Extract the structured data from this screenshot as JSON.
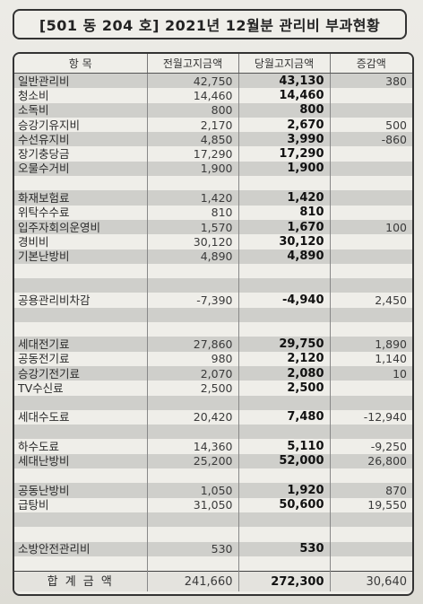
{
  "title": "[501 동 204 호] 2021년 12월분 관리비 부과현황",
  "headers": [
    "항  목",
    "전월고지금액",
    "당월고지금액",
    "증감액"
  ],
  "rows": [
    {
      "item": "일반관리비",
      "prev": "42,750",
      "cur": "43,130",
      "diff": "380"
    },
    {
      "item": "청소비",
      "prev": "14,460",
      "cur": "14,460",
      "diff": ""
    },
    {
      "item": "소독비",
      "prev": "800",
      "cur": "800",
      "diff": ""
    },
    {
      "item": "승강기유지비",
      "prev": "2,170",
      "cur": "2,670",
      "diff": "500"
    },
    {
      "item": "수선유지비",
      "prev": "4,850",
      "cur": "3,990",
      "diff": "-860"
    },
    {
      "item": "장기충당금",
      "prev": "17,290",
      "cur": "17,290",
      "diff": ""
    },
    {
      "item": "오물수거비",
      "prev": "1,900",
      "cur": "1,900",
      "diff": ""
    },
    {
      "item": "",
      "prev": "",
      "cur": "",
      "diff": ""
    },
    {
      "item": "화재보험료",
      "prev": "1,420",
      "cur": "1,420",
      "diff": ""
    },
    {
      "item": "위탁수수료",
      "prev": "810",
      "cur": "810",
      "diff": ""
    },
    {
      "item": "입주자회의운영비",
      "prev": "1,570",
      "cur": "1,670",
      "diff": "100"
    },
    {
      "item": "경비비",
      "prev": "30,120",
      "cur": "30,120",
      "diff": ""
    },
    {
      "item": "기본난방비",
      "prev": "4,890",
      "cur": "4,890",
      "diff": ""
    },
    {
      "item": "",
      "prev": "",
      "cur": "",
      "diff": ""
    },
    {
      "item": "",
      "prev": "",
      "cur": "",
      "diff": ""
    },
    {
      "item": "공용관리비차감",
      "prev": "-7,390",
      "cur": "-4,940",
      "diff": "2,450"
    },
    {
      "item": "",
      "prev": "",
      "cur": "",
      "diff": ""
    },
    {
      "item": "",
      "prev": "",
      "cur": "",
      "diff": ""
    },
    {
      "item": "세대전기료",
      "prev": "27,860",
      "cur": "29,750",
      "diff": "1,890"
    },
    {
      "item": "공동전기료",
      "prev": "980",
      "cur": "2,120",
      "diff": "1,140"
    },
    {
      "item": "승강기전기료",
      "prev": "2,070",
      "cur": "2,080",
      "diff": "10"
    },
    {
      "item": "TV수신료",
      "prev": "2,500",
      "cur": "2,500",
      "diff": ""
    },
    {
      "item": "",
      "prev": "",
      "cur": "",
      "diff": ""
    },
    {
      "item": "세대수도료",
      "prev": "20,420",
      "cur": "7,480",
      "diff": "-12,940"
    },
    {
      "item": "",
      "prev": "",
      "cur": "",
      "diff": ""
    },
    {
      "item": "하수도료",
      "prev": "14,360",
      "cur": "5,110",
      "diff": "-9,250"
    },
    {
      "item": "세대난방비",
      "prev": "25,200",
      "cur": "52,000",
      "diff": "26,800"
    },
    {
      "item": "",
      "prev": "",
      "cur": "",
      "diff": ""
    },
    {
      "item": "공동난방비",
      "prev": "1,050",
      "cur": "1,920",
      "diff": "870"
    },
    {
      "item": "급탕비",
      "prev": "31,050",
      "cur": "50,600",
      "diff": "19,550"
    },
    {
      "item": "",
      "prev": "",
      "cur": "",
      "diff": ""
    },
    {
      "item": "",
      "prev": "",
      "cur": "",
      "diff": ""
    },
    {
      "item": "소방안전관리비",
      "prev": "530",
      "cur": "530",
      "diff": ""
    },
    {
      "item": "",
      "prev": "",
      "cur": "",
      "diff": ""
    }
  ],
  "total": {
    "label": "합 계 금 액",
    "prev": "241,660",
    "cur": "272,300",
    "diff": "30,640"
  }
}
